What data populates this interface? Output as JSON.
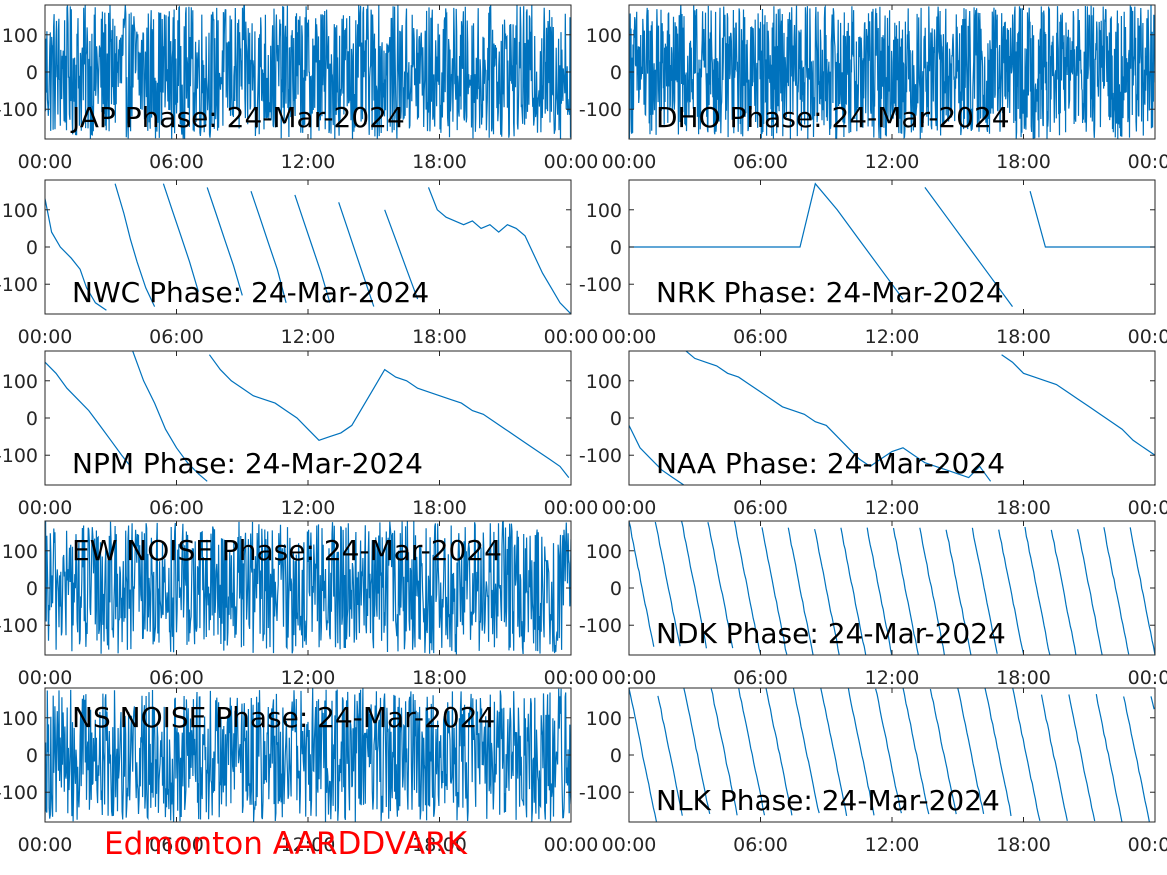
{
  "figure": {
    "footer_title": "Edmonton AARDDVARK",
    "footer_color": "#ff0000",
    "line_color": "#0072bd",
    "axis_color": "#262626"
  },
  "chart_data": [
    {
      "type": "line",
      "title": "JAP Phase: 24-Mar-2024",
      "ylim": [
        -180,
        180
      ],
      "x_ticks": [
        "00:00",
        "06:00",
        "12:00",
        "18:00",
        "00:00"
      ],
      "y_ticks": [
        100,
        0,
        -100
      ],
      "series": [
        {
          "style": "noise",
          "density": 110,
          "amplitude": 180
        }
      ]
    },
    {
      "type": "line",
      "title": "DHO Phase: 24-Mar-2024",
      "ylim": [
        -180,
        180
      ],
      "x_ticks": [
        "00:00",
        "06:00",
        "12:00",
        "18:00",
        "00:00"
      ],
      "y_ticks": [
        100,
        0,
        -100
      ],
      "series": [
        {
          "style": "noise",
          "density": 130,
          "amplitude": 180
        }
      ]
    },
    {
      "type": "line",
      "title": "NWC Phase: 24-Mar-2024",
      "ylim": [
        -180,
        180
      ],
      "x_ticks": [
        "00:00",
        "06:00",
        "12:00",
        "18:00",
        "00:00"
      ],
      "y_ticks": [
        100,
        0,
        -100
      ],
      "series": [
        {
          "style": "points",
          "x": [
            0,
            0.3,
            0.7,
            1.2,
            1.6,
            1.9,
            2.3,
            2.8,
            3.2,
            3.6,
            3.9,
            4.2,
            4.6,
            5.0,
            5.4,
            5.8,
            6.2,
            6.6,
            7.0,
            7.4,
            7.8,
            8.2,
            8.6,
            9.0,
            9.4,
            9.8,
            10.2,
            10.6,
            11.0,
            11.4,
            11.8,
            12.2,
            12.6,
            13.0,
            13.4,
            13.8,
            14.2,
            14.6,
            15.0,
            15.5,
            16.0,
            16.5,
            17.0,
            17.5,
            17.9,
            18.3,
            18.7,
            19.1,
            19.5,
            19.9,
            20.3,
            20.7,
            21.1,
            21.5,
            21.9,
            22.3,
            22.7,
            23.1,
            23.5,
            24.0
          ],
          "y": [
            130,
            40,
            0,
            -30,
            -60,
            -110,
            -150,
            -170,
            170,
            90,
            20,
            -40,
            -110,
            -160,
            170,
            100,
            30,
            -40,
            -120,
            160,
            90,
            20,
            -50,
            -130,
            150,
            80,
            10,
            -60,
            -150,
            140,
            70,
            0,
            -70,
            -150,
            120,
            50,
            -20,
            -90,
            -160,
            100,
            20,
            -60,
            -140,
            160,
            100,
            80,
            70,
            60,
            70,
            50,
            60,
            40,
            60,
            50,
            30,
            -20,
            -70,
            -110,
            -150,
            -180
          ]
        }
      ]
    },
    {
      "type": "line",
      "title": "NRK Phase: 24-Mar-2024",
      "ylim": [
        -180,
        180
      ],
      "x_ticks": [
        "00:00",
        "06:00",
        "12:00",
        "18:00",
        "00:00"
      ],
      "y_ticks": [
        100,
        0,
        -100
      ],
      "series": [
        {
          "style": "points",
          "x": [
            0,
            2,
            4,
            6,
            7.8,
            8.5,
            9.5,
            10.5,
            11.5,
            12.5,
            13.5,
            14.5,
            15.5,
            16.5,
            17.5,
            18.3,
            19,
            20,
            21,
            22,
            23,
            24
          ],
          "y": [
            0,
            0,
            0,
            0,
            0,
            170,
            100,
            20,
            -60,
            -140,
            160,
            80,
            0,
            -80,
            -160,
            150,
            0,
            0,
            0,
            0,
            0,
            0
          ]
        }
      ]
    },
    {
      "type": "line",
      "title": "NPM Phase: 24-Mar-2024",
      "ylim": [
        -180,
        180
      ],
      "x_ticks": [
        "00:00",
        "06:00",
        "12:00",
        "18:00",
        "00:00"
      ],
      "y_ticks": [
        100,
        0,
        -100
      ],
      "series": [
        {
          "style": "points",
          "x": [
            0,
            0.5,
            1.0,
            1.5,
            2.0,
            2.5,
            3.0,
            3.5,
            3.9,
            4.0,
            4.5,
            5.0,
            5.5,
            6.0,
            6.5,
            7.0,
            7.4,
            7.5,
            8.0,
            8.5,
            9.0,
            9.5,
            10.0,
            10.5,
            11.0,
            11.5,
            12.0,
            12.5,
            13.0,
            13.5,
            14.0,
            14.5,
            15.0,
            15.5,
            16.0,
            16.5,
            17.0,
            17.5,
            18.0,
            18.5,
            19.0,
            19.5,
            20.0,
            20.5,
            21.0,
            21.5,
            22.0,
            22.5,
            23.0,
            23.5,
            23.9,
            24.0
          ],
          "y": [
            150,
            120,
            80,
            50,
            20,
            -20,
            -60,
            -100,
            -130,
            180,
            100,
            40,
            -30,
            -80,
            -120,
            -150,
            -170,
            170,
            130,
            100,
            80,
            60,
            50,
            40,
            20,
            0,
            -30,
            -60,
            -50,
            -40,
            -20,
            30,
            80,
            130,
            110,
            100,
            80,
            70,
            60,
            50,
            40,
            20,
            10,
            -10,
            -30,
            -50,
            -70,
            -90,
            -110,
            -130,
            -160,
            180
          ]
        }
      ]
    },
    {
      "type": "line",
      "title": "NAA Phase: 24-Mar-2024",
      "ylim": [
        -180,
        180
      ],
      "x_ticks": [
        "00:00",
        "06:00",
        "12:00",
        "18:00",
        "00:00"
      ],
      "y_ticks": [
        100,
        0,
        -100
      ],
      "series": [
        {
          "style": "points",
          "x": [
            0,
            0.5,
            1.0,
            1.5,
            2.0,
            2.5,
            2.6,
            3.0,
            3.5,
            4.0,
            4.5,
            5.0,
            5.5,
            6.0,
            6.5,
            7.0,
            7.5,
            8.0,
            8.5,
            9.0,
            9.5,
            10.0,
            10.5,
            11.0,
            11.5,
            12.0,
            12.5,
            13.0,
            13.5,
            14.0,
            14.5,
            15.0,
            15.5,
            16.0,
            16.5,
            17.0,
            17.5,
            18.0,
            18.5,
            19.0,
            19.5,
            20.0,
            20.5,
            21.0,
            21.5,
            22.0,
            22.5,
            23.0,
            23.5,
            24.0
          ],
          "y": [
            -20,
            -80,
            -110,
            -140,
            -160,
            -180,
            180,
            160,
            150,
            140,
            120,
            110,
            90,
            70,
            50,
            30,
            20,
            10,
            -10,
            -20,
            -50,
            -80,
            -110,
            -130,
            -110,
            -90,
            -80,
            -100,
            -120,
            -130,
            -140,
            -150,
            -160,
            -130,
            -170,
            170,
            150,
            120,
            110,
            100,
            90,
            70,
            50,
            30,
            10,
            -10,
            -30,
            -60,
            -80,
            -100
          ]
        }
      ]
    },
    {
      "type": "line",
      "title": "EW NOISE Phase: 24-Mar-2024",
      "ylim": [
        -180,
        180
      ],
      "x_ticks": [
        "00:00",
        "06:00",
        "12:00",
        "18:00",
        "00:00"
      ],
      "y_ticks": [
        100,
        0,
        -100
      ],
      "series": [
        {
          "style": "noise",
          "density": 90,
          "amplitude": 180
        }
      ]
    },
    {
      "type": "line",
      "title": "NDK Phase: 24-Mar-2024",
      "ylim": [
        -180,
        180
      ],
      "x_ticks": [
        "00:00",
        "06:00",
        "12:00",
        "18:00",
        "00:00"
      ],
      "y_ticks": [
        100,
        0,
        -100
      ],
      "series": [
        {
          "style": "sawtooth",
          "period_hours": 1.2,
          "start": 180
        }
      ]
    },
    {
      "type": "line",
      "title": "NS NOISE Phase: 24-Mar-2024",
      "ylim": [
        -180,
        180
      ],
      "x_ticks": [
        "00:00",
        "06:00",
        "12:00",
        "18:00",
        "00:00"
      ],
      "y_ticks": [
        100,
        0,
        -100
      ],
      "series": [
        {
          "style": "noise",
          "density": 90,
          "amplitude": 180
        }
      ]
    },
    {
      "type": "line",
      "title": "NLK Phase: 24-Mar-2024",
      "ylim": [
        -180,
        180
      ],
      "x_ticks": [
        "00:00",
        "06:00",
        "12:00",
        "18:00",
        "00:00"
      ],
      "y_ticks": [
        100,
        0,
        -100
      ],
      "series": [
        {
          "style": "sawtooth",
          "period_hours": 1.25,
          "start": 180
        }
      ]
    }
  ]
}
